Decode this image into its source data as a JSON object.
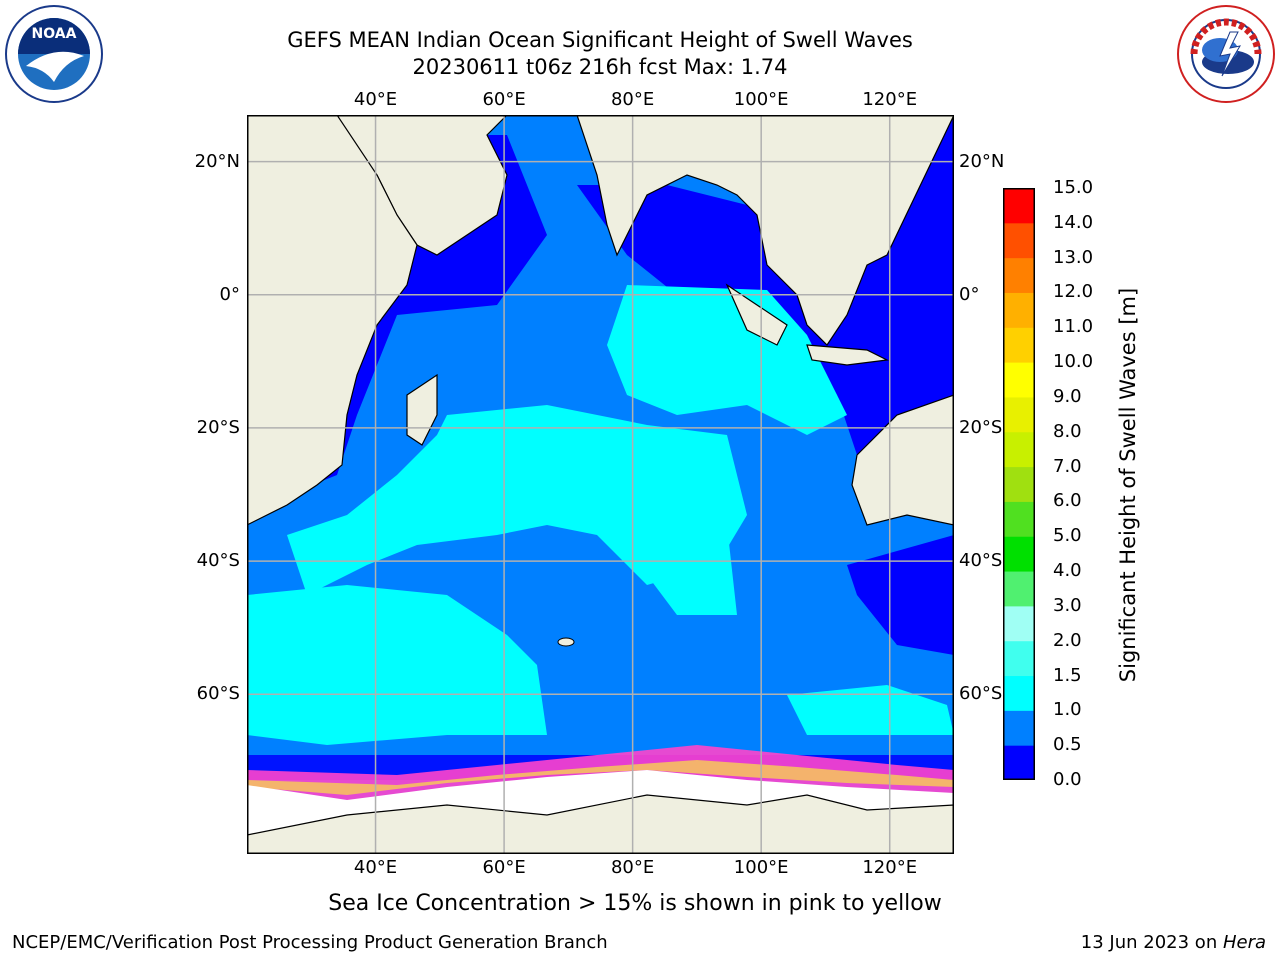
{
  "header": {
    "title_line1": "GEFS MEAN Indian Ocean Significant Height of Swell Waves",
    "title_line2": "20230611 t06z 216h fcst   Max: 1.74"
  },
  "logos": {
    "left": "noaa-logo",
    "right": "national-weather-service-logo"
  },
  "map": {
    "lon_labels": [
      "40°E",
      "60°E",
      "80°E",
      "100°E",
      "120°E"
    ],
    "lat_labels": [
      "20°N",
      "0°",
      "20°S",
      "40°S",
      "60°S"
    ],
    "lon_values": [
      40,
      60,
      80,
      100,
      120
    ],
    "lat_values": [
      20,
      0,
      -20,
      -40,
      -60
    ],
    "lon_range": [
      20,
      130
    ],
    "lat_range": [
      -84,
      27
    ],
    "colors": {
      "land": "#efefe0",
      "coast": "#000000",
      "grid": "#b0b0b0",
      "sea_ice_pink": "#ff44cc",
      "sea_ice_yellow": "#f5c060",
      "ice_sheet": "#ffffff"
    }
  },
  "colorbar": {
    "label": "Significant Height of Swell Waves [m]",
    "ticks": [
      "0.0",
      "0.5",
      "1.0",
      "1.5",
      "2.0",
      "3.0",
      "4.0",
      "5.0",
      "6.0",
      "7.0",
      "8.0",
      "9.0",
      "10.0",
      "11.0",
      "12.0",
      "13.0",
      "14.0",
      "15.0"
    ],
    "colors": [
      "#0000ff",
      "#0080ff",
      "#00ffff",
      "#40ffee",
      "#a0fff4",
      "#50f070",
      "#00e000",
      "#50e020",
      "#a0e010",
      "#c8f000",
      "#e8f000",
      "#ffff00",
      "#ffd000",
      "#ffb000",
      "#ff8000",
      "#ff5000",
      "#ff0000"
    ]
  },
  "footnote": "Sea Ice Concentration > 15% is shown in pink to yellow",
  "credit": "NCEP/EMC/Verification Post Processing Product Generation Branch",
  "datestamp": {
    "text": "13 Jun 2023 on ",
    "system": "Hera"
  }
}
